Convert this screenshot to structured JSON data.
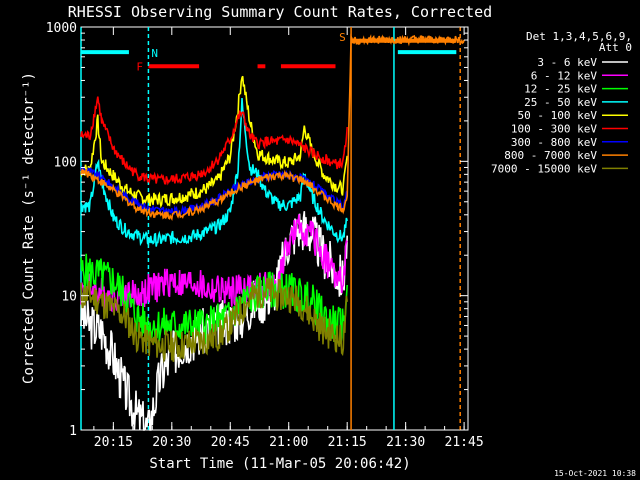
{
  "chart_data": {
    "type": "line",
    "title": "RHESSI Observing Summary Count Rates, Corrected",
    "xlabel": "Start Time (11-Mar-05 20:06:42)",
    "ylabel": "Corrected Count Rate (s⁻¹ detector⁻¹)",
    "xlim": [
      "20:06:42",
      "21:46"
    ],
    "ylim": [
      1,
      1000
    ],
    "yscale": "log",
    "x_ticks": [
      "20:15",
      "20:30",
      "20:45",
      "21:00",
      "21:15",
      "21:30",
      "21:45"
    ],
    "y_ticks": [
      "1",
      "10",
      "100",
      "1000"
    ],
    "legend_header": [
      "Det 1,3,4,5,6,9,",
      "Att 0"
    ],
    "legend_position": "right",
    "timestamp": "15-Oct-2021 10:38",
    "series": [
      {
        "name": "3 - 6 keV",
        "color": "#ffffff",
        "x": [
          "20:06:42",
          "20:09",
          "20:12",
          "20:15",
          "20:18",
          "20:21",
          "20:24",
          "20:27",
          "20:30",
          "20:33",
          "20:36",
          "20:39",
          "20:42",
          "20:45",
          "20:48",
          "20:51",
          "20:54",
          "20:57",
          "21:00",
          "21:03",
          "21:06",
          "21:09",
          "21:12",
          "21:14",
          "21:15"
        ],
        "y": [
          7.5,
          6,
          5.5,
          3.5,
          2,
          1.3,
          1,
          2.5,
          3.6,
          4.5,
          5,
          5.5,
          6,
          6.5,
          7,
          9,
          9.5,
          12,
          26,
          33,
          29,
          20,
          15,
          13,
          28
        ]
      },
      {
        "name": "6 - 12 keV",
        "color": "#ff00ff",
        "x": [
          "20:06:42",
          "20:09",
          "20:12",
          "20:15",
          "20:18",
          "20:21",
          "20:24",
          "20:27",
          "20:30",
          "20:33",
          "20:36",
          "20:39",
          "20:42",
          "20:45",
          "20:48",
          "20:51",
          "20:54",
          "20:57",
          "21:00",
          "21:03",
          "21:06",
          "21:09",
          "21:12",
          "21:14",
          "21:15"
        ],
        "y": [
          11,
          11.5,
          10.5,
          10,
          10.5,
          10,
          11,
          12,
          13,
          12,
          12.5,
          11,
          11,
          10.5,
          11.5,
          11,
          11.5,
          12,
          25,
          32,
          28,
          20,
          14,
          12,
          25
        ]
      },
      {
        "name": "12 - 25 keV",
        "color": "#00ff00",
        "x": [
          "20:06:42",
          "20:09",
          "20:12",
          "20:15",
          "20:18",
          "20:21",
          "20:24",
          "20:27",
          "20:30",
          "20:33",
          "20:36",
          "20:39",
          "20:42",
          "20:45",
          "20:48",
          "20:51",
          "20:54",
          "20:57",
          "21:00",
          "21:03",
          "21:06",
          "21:09",
          "21:12",
          "21:14",
          "21:15"
        ],
        "y": [
          15,
          15,
          14,
          13,
          10,
          7,
          6,
          6,
          6,
          6,
          6,
          6,
          6.5,
          7,
          9,
          10,
          11,
          11,
          11,
          10,
          9,
          7,
          6,
          6,
          12
        ]
      },
      {
        "name": "25 - 50 keV",
        "color": "#00ffff",
        "x": [
          "20:06:42",
          "20:09",
          "20:11",
          "20:12",
          "20:15",
          "20:18",
          "20:21",
          "20:24",
          "20:27",
          "20:30",
          "20:33",
          "20:36",
          "20:39",
          "20:42",
          "20:45",
          "20:47",
          "20:48",
          "20:50",
          "20:52",
          "20:54",
          "20:57",
          "21:00",
          "21:03",
          "21:04",
          "21:06",
          "21:09",
          "21:12",
          "21:14",
          "21:15"
        ],
        "y": [
          47,
          46,
          100,
          70,
          38,
          31,
          28,
          26,
          26,
          27,
          27,
          28,
          30,
          33,
          42,
          90,
          270,
          90,
          80,
          60,
          48,
          47,
          55,
          80,
          55,
          37,
          29,
          27,
          36
        ]
      },
      {
        "name": "50 - 100 keV",
        "color": "#ffff00",
        "x": [
          "20:06:42",
          "20:09",
          "20:11",
          "20:12",
          "20:15",
          "20:18",
          "20:21",
          "20:24",
          "20:27",
          "20:30",
          "20:33",
          "20:36",
          "20:39",
          "20:42",
          "20:45",
          "20:47",
          "20:48",
          "20:50",
          "20:52",
          "20:54",
          "20:57",
          "21:00",
          "21:03",
          "21:04",
          "21:06",
          "21:09",
          "21:12",
          "21:14",
          "21:15"
        ],
        "y": [
          87,
          86,
          200,
          100,
          78,
          62,
          55,
          52,
          52,
          53,
          55,
          58,
          63,
          73,
          110,
          250,
          450,
          200,
          115,
          108,
          100,
          97,
          110,
          180,
          120,
          80,
          66,
          62,
          110
        ]
      },
      {
        "name": "100 - 300 keV",
        "color": "#ff0000",
        "x": [
          "20:06:42",
          "20:09",
          "20:11",
          "20:12",
          "20:15",
          "20:18",
          "20:21",
          "20:24",
          "20:27",
          "20:30",
          "20:33",
          "20:36",
          "20:39",
          "20:42",
          "20:45",
          "20:47",
          "20:48",
          "20:50",
          "20:52",
          "20:54",
          "20:57",
          "21:00",
          "21:03",
          "21:06",
          "21:09",
          "21:12",
          "21:14",
          "21:15"
        ],
        "y": [
          155,
          155,
          300,
          200,
          125,
          95,
          80,
          74,
          72,
          73,
          75,
          78,
          85,
          105,
          145,
          210,
          230,
          155,
          135,
          140,
          140,
          145,
          130,
          115,
          105,
          95,
          98,
          180
        ]
      },
      {
        "name": "300 - 800 keV",
        "color": "#0000ff",
        "x": [
          "20:06:42",
          "20:09",
          "20:12",
          "20:15",
          "20:18",
          "20:21",
          "20:24",
          "20:27",
          "20:30",
          "20:33",
          "20:36",
          "20:39",
          "20:42",
          "20:45",
          "20:48",
          "20:51",
          "20:54",
          "20:57",
          "21:00",
          "21:03",
          "21:06",
          "21:09",
          "21:12",
          "21:14",
          "21:15"
        ],
        "y": [
          88,
          84,
          75,
          65,
          55,
          49,
          45,
          43,
          42,
          43,
          45,
          48,
          53,
          60,
          67,
          72,
          78,
          80,
          79,
          75,
          68,
          58,
          50,
          46,
          60
        ]
      },
      {
        "name": "800 - 7000 keV",
        "color": "#ff8000",
        "x": [
          "20:06:42",
          "20:09",
          "20:12",
          "20:15",
          "20:18",
          "20:21",
          "20:24",
          "20:27",
          "20:30",
          "20:33",
          "20:36",
          "20:39",
          "20:42",
          "20:45",
          "20:48",
          "20:51",
          "20:54",
          "20:57",
          "21:00",
          "21:03",
          "21:06",
          "21:09",
          "21:12",
          "21:14",
          "21:15",
          "21:16",
          "21:19",
          "21:25",
          "21:35",
          "21:45"
        ],
        "y": [
          84,
          80,
          70,
          61,
          52,
          45,
          42,
          40,
          40,
          41,
          43,
          46,
          51,
          58,
          65,
          70,
          75,
          78,
          77,
          73,
          65,
          55,
          47,
          44,
          55,
          800,
          800,
          800,
          800,
          800
        ]
      },
      {
        "name": "7000 - 15000 keV",
        "color": "#808000",
        "x": [
          "20:06:42",
          "20:09",
          "20:12",
          "20:15",
          "20:18",
          "20:21",
          "20:24",
          "20:27",
          "20:30",
          "20:33",
          "20:36",
          "20:39",
          "20:42",
          "20:45",
          "20:48",
          "20:51",
          "20:54",
          "20:57",
          "21:00",
          "21:03",
          "21:06",
          "21:09",
          "21:12",
          "21:14",
          "21:15"
        ],
        "y": [
          10,
          10,
          9,
          8,
          7,
          5,
          4.5,
          4.3,
          4.2,
          4.3,
          4.5,
          4.7,
          5,
          6,
          8,
          10,
          11,
          10,
          10,
          9,
          7,
          5.5,
          5,
          4.5,
          9
        ]
      }
    ],
    "flags": [
      {
        "label": "",
        "color": "#00ffff",
        "y": 650,
        "segments": [
          [
            "20:06:42",
            "20:19"
          ],
          [
            "21:28",
            "21:43"
          ]
        ]
      },
      {
        "label": "N",
        "color": "#00ffff",
        "x": "20:24"
      },
      {
        "label": "F",
        "color": "#ff0000",
        "y": 510,
        "segments": [
          [
            "20:24",
            "20:37"
          ],
          [
            "20:52",
            "20:54"
          ],
          [
            "20:58",
            "21:12"
          ]
        ]
      },
      {
        "label": "S",
        "color": "#ff8000",
        "y": 790,
        "segments": [
          [
            "21:16",
            "21:43"
          ]
        ]
      }
    ],
    "vertical_markers": [
      {
        "x": "20:06:42",
        "color": "#00ffff",
        "style": "solid"
      },
      {
        "x": "20:24",
        "color": "#00ffff",
        "style": "dashed"
      },
      {
        "x": "21:16",
        "color": "#ff8000",
        "style": "solid"
      },
      {
        "x": "21:27",
        "color": "#00ffff",
        "style": "solid"
      },
      {
        "x": "21:44",
        "color": "#ff8000",
        "style": "dashed"
      }
    ]
  }
}
